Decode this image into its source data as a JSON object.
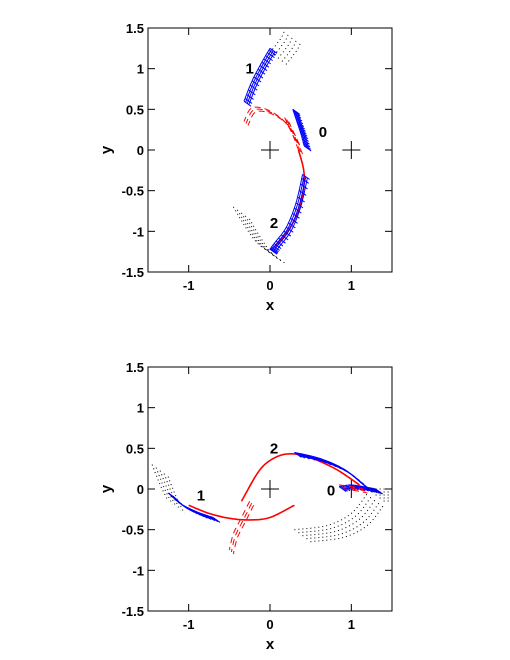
{
  "colors": {
    "series_blue": "#0000ff",
    "series_red": "#ff0000",
    "dots_black": "#000000",
    "frame": "#000000"
  },
  "chart_data": [
    {
      "type": "line",
      "title": "",
      "xlabel": "x",
      "ylabel": "y",
      "xlim": [
        -1.5,
        1.5
      ],
      "ylim": [
        -1.5,
        1.5
      ],
      "xticks": [
        -1,
        0,
        1
      ],
      "xtick_labels": [
        "-1",
        "0",
        "1"
      ],
      "yticks": [
        -1.5,
        -1,
        -0.5,
        0,
        0.5,
        1,
        1.5
      ],
      "ytick_labels": [
        "-1.5",
        "-1",
        "-0.5",
        "0",
        "0.5",
        "1",
        "1.5"
      ],
      "center_markers": [
        [
          0,
          0
        ],
        [
          1,
          0
        ]
      ],
      "annotations": [
        {
          "text": "0",
          "x": 0.65,
          "y": 0.22
        },
        {
          "text": "1",
          "x": -0.25,
          "y": 1.0
        },
        {
          "text": "2",
          "x": 0.05,
          "y": -0.9
        }
      ],
      "series": [
        {
          "color": "blue",
          "style": "hatch",
          "x": [
            0.42,
            0.38,
            0.33,
            0.28
          ],
          "y": [
            0.05,
            0.2,
            0.35,
            0.5
          ]
        },
        {
          "color": "red",
          "style": "dashed",
          "x": [
            0.35,
            0.22,
            0.0,
            -0.22,
            -0.32
          ],
          "y": [
            0.0,
            0.3,
            0.48,
            0.52,
            0.35
          ]
        },
        {
          "color": "red",
          "style": "solid",
          "x": [
            0.35,
            0.42,
            0.38,
            0.25,
            0.05
          ],
          "y": [
            0.0,
            -0.3,
            -0.65,
            -0.95,
            -1.2
          ]
        },
        {
          "color": "blue",
          "style": "hatch",
          "x": [
            0.4,
            0.32,
            0.2,
            0.05,
            0.0
          ],
          "y": [
            -0.3,
            -0.65,
            -0.95,
            -1.15,
            -1.22
          ]
        },
        {
          "color": "blue",
          "style": "hatch",
          "x": [
            -0.32,
            -0.22,
            -0.1,
            0.0
          ],
          "y": [
            0.6,
            0.85,
            1.08,
            1.25
          ]
        },
        {
          "color": "black",
          "style": "dotted",
          "x": [
            0.0,
            0.08,
            0.15,
            0.18
          ],
          "y": [
            1.2,
            1.3,
            1.4,
            1.48
          ]
        },
        {
          "color": "black",
          "style": "dotted",
          "x": [
            -0.45,
            -0.3,
            -0.15,
            0.0
          ],
          "y": [
            -0.7,
            -0.95,
            -1.15,
            -1.25
          ]
        },
        {
          "color": "red",
          "style": "dashed",
          "x": [
            0.18,
            0.25,
            0.32
          ],
          "y": [
            0.4,
            0.25,
            0.1
          ]
        }
      ]
    },
    {
      "type": "line",
      "title": "",
      "xlabel": "x",
      "ylabel": "y",
      "xlim": [
        -1.5,
        1.5
      ],
      "ylim": [
        -1.5,
        1.5
      ],
      "xticks": [
        -1,
        0,
        1
      ],
      "xtick_labels": [
        "-1",
        "0",
        "1"
      ],
      "yticks": [
        -1.5,
        -1,
        -0.5,
        0,
        0.5,
        1,
        1.5
      ],
      "ytick_labels": [
        "-1.5",
        "-1",
        "-0.5",
        "0",
        "0.5",
        "1",
        "1.5"
      ],
      "center_markers": [
        [
          0,
          0
        ],
        [
          1,
          0
        ]
      ],
      "annotations": [
        {
          "text": "0",
          "x": 0.75,
          "y": -0.02
        },
        {
          "text": "1",
          "x": -0.85,
          "y": -0.08
        },
        {
          "text": "2",
          "x": 0.05,
          "y": 0.5
        }
      ],
      "series": [
        {
          "color": "red",
          "style": "solid",
          "x": [
            -0.35,
            -0.15,
            0.0,
            0.2,
            0.45,
            0.8,
            1.1
          ],
          "y": [
            -0.15,
            0.2,
            0.35,
            0.43,
            0.4,
            0.25,
            0.05
          ]
        },
        {
          "color": "blue",
          "style": "hatch",
          "x": [
            0.3,
            0.6,
            0.9,
            1.15
          ],
          "y": [
            0.45,
            0.38,
            0.25,
            0.05
          ]
        },
        {
          "color": "red",
          "style": "solid",
          "x": [
            -1.0,
            -0.75,
            -0.5,
            -0.25,
            0.0,
            0.3
          ],
          "y": [
            -0.2,
            -0.3,
            -0.36,
            -0.38,
            -0.35,
            -0.2
          ]
        },
        {
          "color": "blue",
          "style": "hatch",
          "x": [
            -1.25,
            -1.1,
            -0.9,
            -0.7
          ],
          "y": [
            -0.05,
            -0.18,
            -0.28,
            -0.35
          ]
        },
        {
          "color": "red",
          "style": "dashed",
          "x": [
            -0.25,
            -0.35,
            -0.45,
            -0.5
          ],
          "y": [
            -0.15,
            -0.35,
            -0.55,
            -0.75
          ]
        },
        {
          "color": "blue",
          "style": "hatch",
          "x": [
            0.85,
            1.0,
            1.2,
            1.3
          ],
          "y": [
            0.03,
            0.05,
            0.02,
            0.0
          ]
        },
        {
          "color": "red",
          "style": "dashed",
          "x": [
            0.85,
            1.0,
            1.15
          ],
          "y": [
            0.05,
            0.03,
            0.0
          ]
        },
        {
          "color": "black",
          "style": "dotted",
          "x": [
            -1.45,
            -1.35,
            -1.25
          ],
          "y": [
            0.3,
            0.05,
            -0.15
          ]
        },
        {
          "color": "black",
          "style": "dotted",
          "x": [
            0.3,
            0.7,
            1.0,
            1.2
          ],
          "y": [
            -0.5,
            -0.45,
            -0.3,
            -0.05
          ]
        },
        {
          "color": "black",
          "style": "dotted",
          "x": [
            1.2,
            1.35,
            1.5
          ],
          "y": [
            0.0,
            0.0,
            0.0
          ]
        }
      ]
    }
  ]
}
